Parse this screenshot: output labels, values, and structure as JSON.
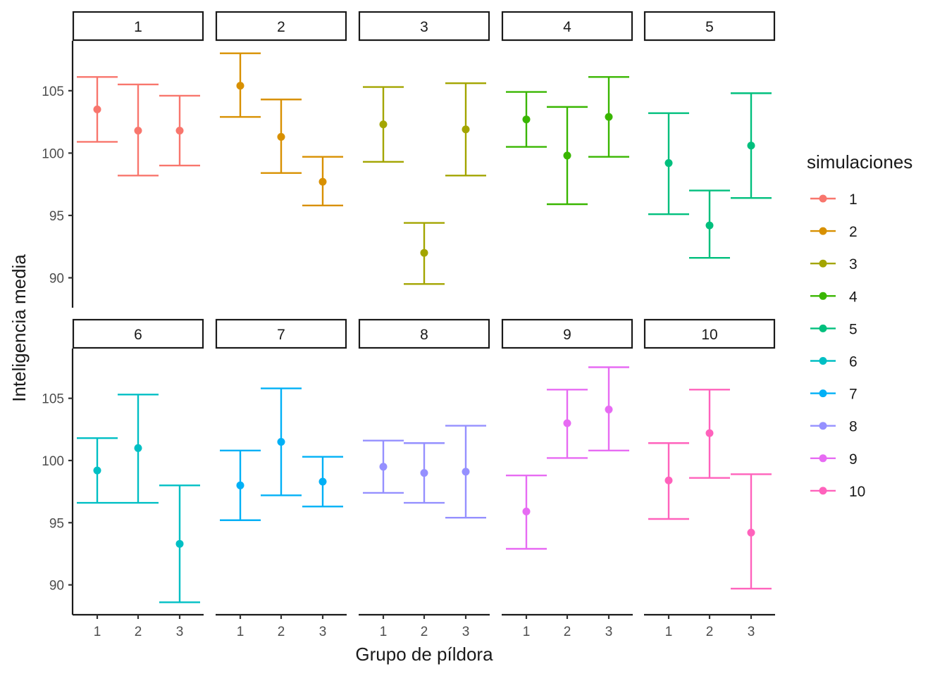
{
  "chart_data": {
    "type": "errorbar",
    "facet_layout": {
      "rows": 2,
      "cols": 5
    },
    "xlabel": "Grupo de píldora",
    "ylabel": "Inteligencia media",
    "x_categories": [
      "1",
      "2",
      "3"
    ],
    "yticks": [
      90,
      95,
      100,
      105
    ],
    "ylim": [
      87.6,
      109.0
    ],
    "legend": {
      "title": "simulaciones",
      "position": "right"
    },
    "facets": [
      {
        "label": "1",
        "color": "#F8766D",
        "points": [
          {
            "x": "1",
            "mean": 103.5,
            "lower": 100.9,
            "upper": 106.1
          },
          {
            "x": "2",
            "mean": 101.8,
            "lower": 98.2,
            "upper": 105.5
          },
          {
            "x": "3",
            "mean": 101.8,
            "lower": 99.0,
            "upper": 104.6
          }
        ]
      },
      {
        "label": "2",
        "color": "#D89000",
        "points": [
          {
            "x": "1",
            "mean": 105.4,
            "lower": 102.9,
            "upper": 108.0
          },
          {
            "x": "2",
            "mean": 101.3,
            "lower": 98.4,
            "upper": 104.3
          },
          {
            "x": "3",
            "mean": 97.7,
            "lower": 95.8,
            "upper": 99.7
          }
        ]
      },
      {
        "label": "3",
        "color": "#A3A500",
        "points": [
          {
            "x": "1",
            "mean": 102.3,
            "lower": 99.3,
            "upper": 105.3
          },
          {
            "x": "2",
            "mean": 92.0,
            "lower": 89.5,
            "upper": 94.4
          },
          {
            "x": "3",
            "mean": 101.9,
            "lower": 98.2,
            "upper": 105.6
          }
        ]
      },
      {
        "label": "4",
        "color": "#39B600",
        "points": [
          {
            "x": "1",
            "mean": 102.7,
            "lower": 100.5,
            "upper": 104.9
          },
          {
            "x": "2",
            "mean": 99.8,
            "lower": 95.9,
            "upper": 103.7
          },
          {
            "x": "3",
            "mean": 102.9,
            "lower": 99.7,
            "upper": 106.1
          }
        ]
      },
      {
        "label": "5",
        "color": "#00BF7D",
        "points": [
          {
            "x": "1",
            "mean": 99.2,
            "lower": 95.1,
            "upper": 103.2
          },
          {
            "x": "2",
            "mean": 94.2,
            "lower": 91.6,
            "upper": 97.0
          },
          {
            "x": "3",
            "mean": 100.6,
            "lower": 96.4,
            "upper": 104.8
          }
        ]
      },
      {
        "label": "6",
        "color": "#00BFC4",
        "points": [
          {
            "x": "1",
            "mean": 99.2,
            "lower": 96.6,
            "upper": 101.8
          },
          {
            "x": "2",
            "mean": 101.0,
            "lower": 96.6,
            "upper": 105.3
          },
          {
            "x": "3",
            "mean": 93.3,
            "lower": 88.6,
            "upper": 98.0
          }
        ]
      },
      {
        "label": "7",
        "color": "#00B0F6",
        "points": [
          {
            "x": "1",
            "mean": 98.0,
            "lower": 95.2,
            "upper": 100.8
          },
          {
            "x": "2",
            "mean": 101.5,
            "lower": 97.2,
            "upper": 105.8
          },
          {
            "x": "3",
            "mean": 98.3,
            "lower": 96.3,
            "upper": 100.3
          }
        ]
      },
      {
        "label": "8",
        "color": "#9590FF",
        "points": [
          {
            "x": "1",
            "mean": 99.5,
            "lower": 97.4,
            "upper": 101.6
          },
          {
            "x": "2",
            "mean": 99.0,
            "lower": 96.6,
            "upper": 101.4
          },
          {
            "x": "3",
            "mean": 99.1,
            "lower": 95.4,
            "upper": 102.8
          }
        ]
      },
      {
        "label": "9",
        "color": "#E76BF3",
        "points": [
          {
            "x": "1",
            "mean": 95.9,
            "lower": 92.9,
            "upper": 98.8
          },
          {
            "x": "2",
            "mean": 103.0,
            "lower": 100.2,
            "upper": 105.7
          },
          {
            "x": "3",
            "mean": 104.1,
            "lower": 100.8,
            "upper": 107.5
          }
        ]
      },
      {
        "label": "10",
        "color": "#FF62BC",
        "points": [
          {
            "x": "1",
            "mean": 98.4,
            "lower": 95.3,
            "upper": 101.4
          },
          {
            "x": "2",
            "mean": 102.2,
            "lower": 98.6,
            "upper": 105.7
          },
          {
            "x": "3",
            "mean": 94.2,
            "lower": 89.7,
            "upper": 98.9
          }
        ]
      }
    ]
  }
}
